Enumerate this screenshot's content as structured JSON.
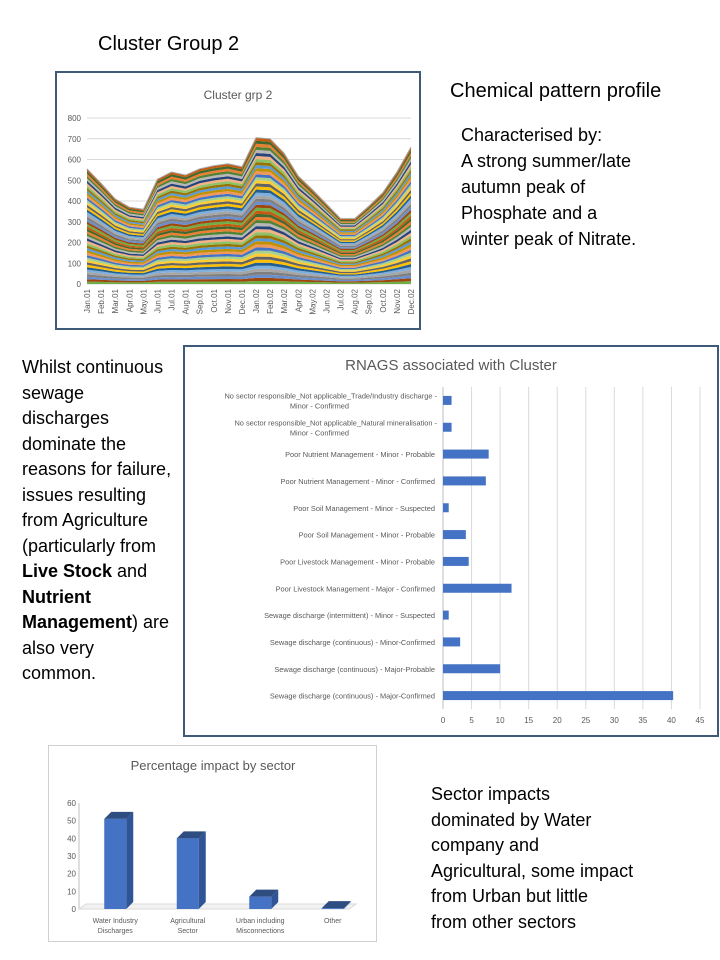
{
  "page_title": "Cluster Group 2",
  "profile": {
    "heading": "Chemical pattern profile",
    "lines": [
      "Characterised by:",
      "A strong summer/late",
      "autumn peak of",
      "Phosphate and a",
      "winter peak of Nitrate."
    ]
  },
  "failure_text": [
    {
      "text": "Whilst "
    },
    {
      "text": "continuous "
    },
    {
      "text": "sewage "
    },
    {
      "text": "discharges "
    },
    {
      "text": "dominate the "
    },
    {
      "text": "reasons for "
    },
    {
      "text": "failure, issues "
    },
    {
      "text": "resulting from "
    },
    {
      "text": "Agriculture "
    },
    {
      "text": "(particularly "
    },
    {
      "text": "from "
    },
    {
      "text": "Live Stock",
      "bold": true
    },
    {
      "text": " and "
    },
    {
      "text": "Nutrient Management",
      "bold": true
    },
    {
      "text": ") are also very common."
    }
  ],
  "sector_text": [
    "Sector impacts",
    "dominated by Water",
    "company and",
    "Agricultural, some impact",
    "from Urban but little",
    "from other sectors"
  ],
  "colors": {
    "frame": "#3f5978",
    "bar": "#4472c4",
    "bar_dark": "#2f5597",
    "grid": "#d9d9d9",
    "axis_text": "#595959"
  },
  "chart_data": [
    {
      "type": "area",
      "stacked": true,
      "title": "Cluster grp 2",
      "x": [
        "Jan.01",
        "Feb.01",
        "Mar.01",
        "Apr.01",
        "May.01",
        "Jun.01",
        "Jul.01",
        "Aug.01",
        "Sep.01",
        "Oct.01",
        "Nov.01",
        "Dec.01",
        "Jan.02",
        "Feb.02",
        "Mar.02",
        "Apr.02",
        "May.02",
        "Jun.02",
        "Jul.02",
        "Aug.02",
        "Sep.02",
        "Oct.02",
        "Nov.02",
        "Dec.02"
      ],
      "total": [
        555,
        485,
        410,
        370,
        360,
        505,
        540,
        525,
        555,
        570,
        580,
        565,
        705,
        700,
        630,
        520,
        455,
        385,
        315,
        315,
        375,
        440,
        540,
        660
      ],
      "ylim": [
        0,
        800
      ],
      "yticks": [
        0,
        100,
        200,
        300,
        400,
        500,
        600,
        700,
        800
      ],
      "grid": true,
      "legend": "none"
    },
    {
      "type": "bar",
      "orientation": "horizontal",
      "title": "RNAGS associated with Cluster",
      "categories": [
        [
          "No sector responsible_Not applicable_Trade/Industry discharge -",
          "Minor - Confirmed"
        ],
        [
          "No sector responsible_Not applicable_Natural mineralisation -",
          "Minor - Confirmed"
        ],
        [
          "Poor Nutrient Management - Minor - Probable"
        ],
        [
          "Poor Nutrient Management - Minor - Confirmed"
        ],
        [
          "Poor Soil Management - Minor - Suspected"
        ],
        [
          "Poor Soil Management - Minor - Probable"
        ],
        [
          "Poor Livestock Management - Minor - Probable"
        ],
        [
          "Poor Livestock Management - Major - Confirmed"
        ],
        [
          "Sewage discharge (intermittent) - Minor - Suspected"
        ],
        [
          "Sewage discharge (continuous) - Minor-Confirmed"
        ],
        [
          "Sewage discharge (continuous) - Major-Probable"
        ],
        [
          "Sewage discharge (continuous) - Major-Confirmed"
        ]
      ],
      "values": [
        1.5,
        1.5,
        8,
        7.5,
        1,
        4,
        4.5,
        12,
        1,
        3,
        10,
        40.3
      ],
      "xlim": [
        0,
        45
      ],
      "xticks": [
        0,
        5,
        10,
        15,
        20,
        25,
        30,
        35,
        40,
        45
      ],
      "grid": true,
      "legend": "none"
    },
    {
      "type": "bar",
      "style": "3d-column",
      "title": "Percentage impact by sector",
      "categories": [
        [
          "Water Industry",
          "Discharges"
        ],
        [
          "Agricultural",
          "Sector"
        ],
        [
          "Urban including",
          "Misconnections"
        ],
        [
          "Other"
        ]
      ],
      "values": [
        51,
        40,
        7,
        0.5
      ],
      "ylim": [
        0,
        60
      ],
      "yticks": [
        0,
        10,
        20,
        30,
        40,
        50,
        60
      ],
      "grid": false,
      "legend": "none"
    }
  ]
}
